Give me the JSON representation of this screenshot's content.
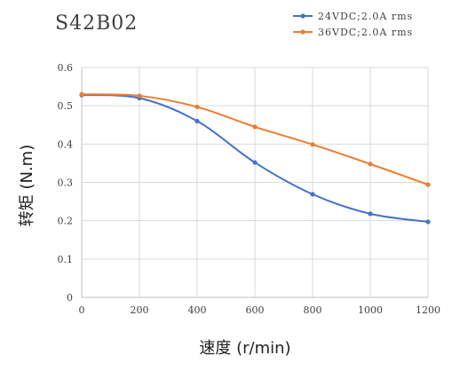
{
  "chart_data": {
    "type": "line",
    "title": "S42B02",
    "xlabel": "速度 (r/min)",
    "ylabel": "转矩 (N.m)",
    "x": [
      0,
      200,
      400,
      600,
      800,
      1000,
      1200
    ],
    "xlim": [
      0,
      1200
    ],
    "ylim": [
      0,
      0.6
    ],
    "x_ticks": [
      "0",
      "200",
      "400",
      "600",
      "800",
      "1000",
      "1200"
    ],
    "y_ticks": [
      "0",
      "0.1",
      "0.2",
      "0.3",
      "0.4",
      "0.5",
      "0.6"
    ],
    "grid": true,
    "legend_position": "top-right",
    "series": [
      {
        "name": "24VDC;2.0A rms",
        "color": "#4472c4",
        "values": [
          0.528,
          0.52,
          0.46,
          0.352,
          0.269,
          0.218,
          0.197
        ]
      },
      {
        "name": "36VDC;2.0A rms",
        "color": "#ed7d31",
        "values": [
          0.53,
          0.526,
          0.497,
          0.445,
          0.399,
          0.348,
          0.294
        ]
      }
    ]
  }
}
